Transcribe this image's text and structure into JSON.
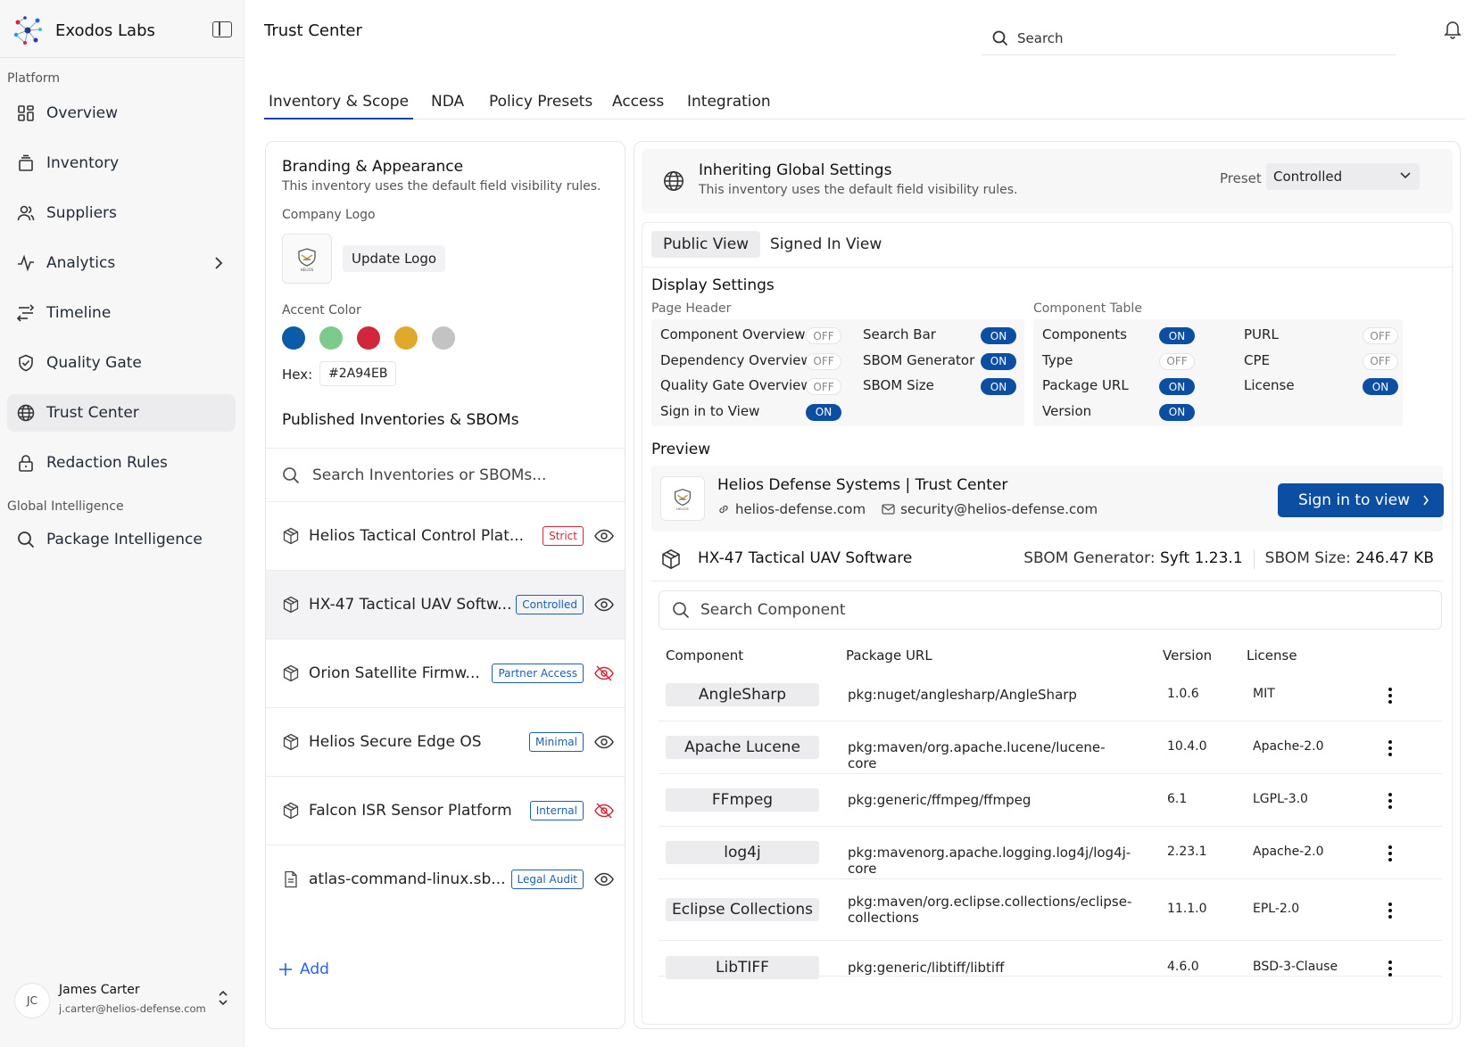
{
  "app": {
    "name": "Exodos Labs",
    "page_title": "Trust Center",
    "search_placeholder": "Search"
  },
  "sidebar": {
    "group_platform": "Platform",
    "group_global": "Global Intelligence",
    "items": [
      {
        "label": "Overview",
        "icon": "grid-icon"
      },
      {
        "label": "Inventory",
        "icon": "inventory-icon"
      },
      {
        "label": "Suppliers",
        "icon": "users-icon"
      },
      {
        "label": "Analytics",
        "icon": "analytics-icon"
      },
      {
        "label": "Timeline",
        "icon": "timeline-icon"
      },
      {
        "label": "Quality Gate",
        "icon": "shield-check-icon"
      },
      {
        "label": "Trust Center",
        "icon": "globe-icon"
      },
      {
        "label": "Redaction Rules",
        "icon": "lock-icon"
      },
      {
        "label": "Package Intelligence",
        "icon": "search-icon"
      }
    ],
    "user": {
      "initials": "JC",
      "name": "James Carter",
      "email": "j.carter@helios-defense.com"
    }
  },
  "tabs": [
    "Inventory & Scope",
    "NDA",
    "Policy Presets",
    "Access",
    "Integration"
  ],
  "branding": {
    "title": "Branding & Appearance",
    "subtitle": "This inventory uses the default field visibility rules.",
    "logo_label": "Company Logo",
    "update_logo": "Update Logo",
    "accent_label": "Accent Color",
    "swatches": [
      "#0b5ca8",
      "#7ccb8c",
      "#d0283a",
      "#dfaa2b",
      "#c3c3c3"
    ],
    "hex_label": "Hex:",
    "hex_value": "#2A94EB"
  },
  "published": {
    "title": "Published Inventories & SBOMs",
    "search_placeholder": "Search Inventories or SBOMs...",
    "items": [
      {
        "name": "Helios Tactical Control Plat...",
        "badge": "Strict",
        "badge_color": "#d0283a",
        "visible": true,
        "icon": "package-icon"
      },
      {
        "name": "HX-47 Tactical UAV Softw...",
        "badge": "Controlled",
        "badge_color": "#1d5fb0",
        "visible": true,
        "icon": "package-icon"
      },
      {
        "name": "Orion Satellite Firmw...",
        "badge": "Partner Access",
        "badge_color": "#1d5fb0",
        "visible": false,
        "icon": "package-icon"
      },
      {
        "name": "Helios Secure Edge OS",
        "badge": "Minimal",
        "badge_color": "#1d5fb0",
        "visible": true,
        "icon": "package-icon"
      },
      {
        "name": "Falcon ISR Sensor Platform",
        "badge": "Internal",
        "badge_color": "#1d5fb0",
        "visible": false,
        "icon": "package-icon"
      },
      {
        "name": "atlas-command-linux.sb...",
        "badge": "Legal Audit",
        "badge_color": "#1d5fb0",
        "visible": true,
        "icon": "file-icon"
      }
    ],
    "add_label": "Add"
  },
  "inherit": {
    "title": "Inheriting Global Settings",
    "subtitle": "This inventory uses the default field visibility rules.",
    "preset_label": "Preset",
    "preset_value": "Controlled"
  },
  "view_tabs": [
    "Public View",
    "Signed In View"
  ],
  "display": {
    "title": "Display Settings",
    "page_header_label": "Page Header",
    "component_table_label": "Component Table",
    "page_header": [
      {
        "label": "Component Overview",
        "state": "OFF"
      },
      {
        "label": "Search Bar",
        "state": "ON"
      },
      {
        "label": "Dependency Overview",
        "state": "OFF"
      },
      {
        "label": "SBOM Generator",
        "state": "ON"
      },
      {
        "label": "Quality Gate Overview",
        "state": "OFF"
      },
      {
        "label": "SBOM Size",
        "state": "ON"
      },
      {
        "label": "Sign in to View",
        "state": "ON"
      }
    ],
    "component_table": [
      {
        "label": "Components",
        "state": "ON"
      },
      {
        "label": "PURL",
        "state": "OFF"
      },
      {
        "label": "Type",
        "state": "OFF"
      },
      {
        "label": "CPE",
        "state": "OFF"
      },
      {
        "label": "Package URL",
        "state": "ON"
      },
      {
        "label": "License",
        "state": "ON"
      },
      {
        "label": "Version",
        "state": "ON"
      }
    ]
  },
  "preview": {
    "label": "Preview",
    "company": "Helios Defense Systems | Trust Center",
    "website": "helios-defense.com",
    "email": "security@helios-defense.com",
    "signin_label": "Sign in to view",
    "sbom_name": "HX-47 Tactical UAV Software",
    "sbom_generator_label": "SBOM Generator:",
    "sbom_generator_value": "Syft 1.23.1",
    "sbom_size_label": "SBOM Size:",
    "sbom_size_value": "246.47 KB",
    "comp_search_placeholder": "Search Component",
    "columns": [
      "Component",
      "Package URL",
      "Version",
      "License"
    ],
    "rows": [
      {
        "component": "AngleSharp",
        "purl": "pkg:nuget/anglesharp/AngleSharp",
        "version": "1.0.6",
        "license": "MIT"
      },
      {
        "component": "Apache Lucene",
        "purl": "pkg:maven/org.apache.lucene/lucene-core",
        "version": "10.4.0",
        "license": "Apache-2.0"
      },
      {
        "component": "FFmpeg",
        "purl": "pkg:generic/ffmpeg/ffmpeg",
        "version": "6.1",
        "license": "LGPL-3.0"
      },
      {
        "component": "log4j",
        "purl": "pkg:mavenorg.apache.logging.log4j/log4j-core",
        "version": "2.23.1",
        "license": "Apache-2.0"
      },
      {
        "component": "Eclipse Collections",
        "purl": "pkg:maven/org.eclipse.collections/eclipse-collections",
        "version": "11.1.0",
        "license": "EPL-2.0"
      },
      {
        "component": "LibTIFF",
        "purl": "pkg:generic/libtiff/libtiff",
        "version": "4.6.0",
        "license": "BSD-3-Clause"
      }
    ]
  }
}
